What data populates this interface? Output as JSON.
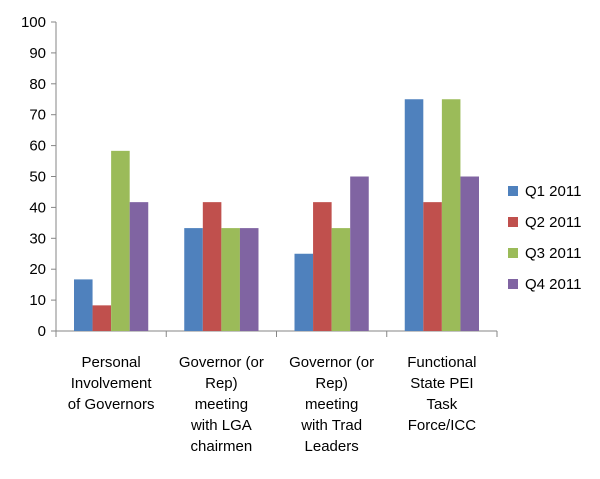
{
  "chart_data": {
    "type": "bar",
    "ylim": [
      0,
      100
    ],
    "yticks": [
      0,
      10,
      20,
      30,
      40,
      50,
      60,
      70,
      80,
      90,
      100
    ],
    "grid": false,
    "legend_position": "right",
    "categories": [
      [
        "Personal",
        "Involvement",
        "of Governors"
      ],
      [
        "Governor (or",
        "Rep)",
        "meeting",
        "with LGA",
        "chairmen"
      ],
      [
        "Governor (or",
        "Rep)",
        "meeting",
        "with Trad",
        "Leaders"
      ],
      [
        "Functional",
        "State PEI",
        "Task",
        "Force/ICC"
      ]
    ],
    "series": [
      {
        "name": "Q1 2011",
        "color": "#4f81bd",
        "values": [
          16.7,
          33.3,
          25,
          75
        ]
      },
      {
        "name": "Q2 2011",
        "color": "#c0504d",
        "values": [
          8.3,
          41.7,
          41.7,
          41.7
        ]
      },
      {
        "name": "Q3 2011",
        "color": "#9bbb59",
        "values": [
          58.3,
          33.3,
          33.3,
          75
        ]
      },
      {
        "name": "Q4 2011",
        "color": "#8064a2",
        "values": [
          41.7,
          33.3,
          50,
          50
        ]
      }
    ]
  }
}
